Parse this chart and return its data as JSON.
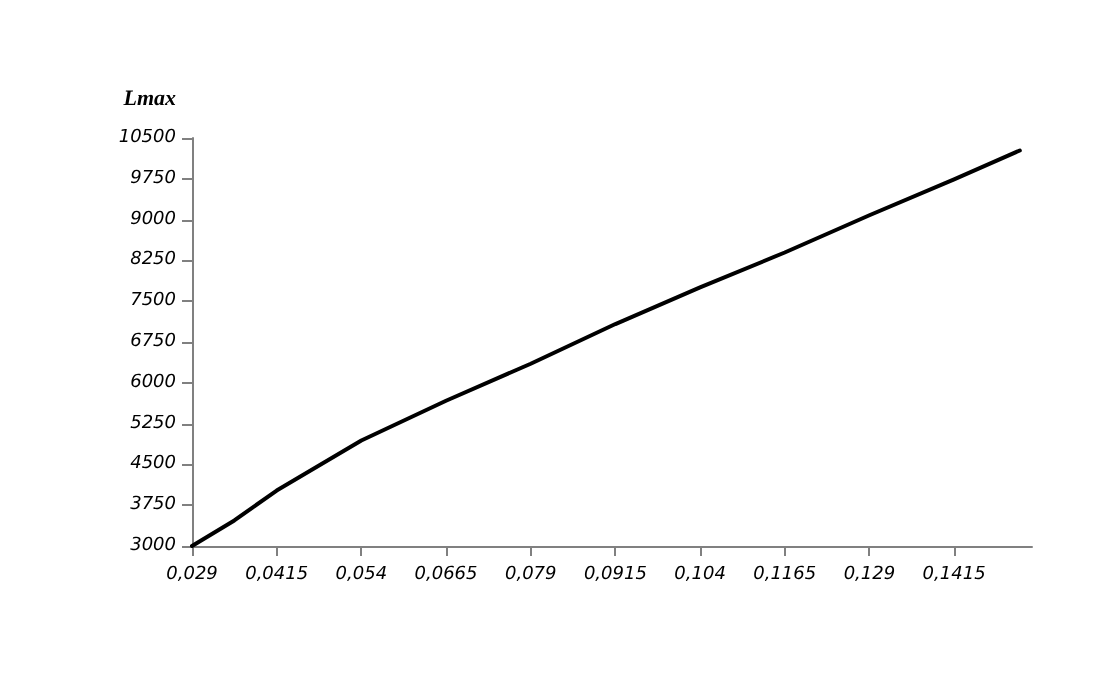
{
  "chart_data": {
    "type": "line",
    "ylabel": "Lmax",
    "x": [
      0.029,
      0.03525,
      0.0415,
      0.054,
      0.0665,
      0.079,
      0.0915,
      0.104,
      0.1165,
      0.129,
      0.1415,
      0.1512
    ],
    "series": [
      {
        "color": "#000000",
        "values": [
          3000,
          3470,
          4020,
          4940,
          5670,
          6350,
          7080,
          7755,
          8395,
          9080,
          9740,
          10270
        ]
      }
    ],
    "xlim": [
      0.029,
      0.153
    ],
    "xticks": [
      {
        "value": 0.029,
        "label": "0,029"
      },
      {
        "value": 0.0415,
        "label": "0,0415"
      },
      {
        "value": 0.054,
        "label": "0,054"
      },
      {
        "value": 0.0665,
        "label": "0,0665"
      },
      {
        "value": 0.079,
        "label": "0,079"
      },
      {
        "value": 0.0915,
        "label": "0,0915"
      },
      {
        "value": 0.104,
        "label": "0,104"
      },
      {
        "value": 0.1165,
        "label": "0,1165"
      },
      {
        "value": 0.129,
        "label": "0,129"
      },
      {
        "value": 0.1415,
        "label": "0,1415"
      }
    ],
    "ylim": [
      3000,
      10500
    ],
    "yticks": [
      3000,
      3750,
      4500,
      5250,
      6000,
      6750,
      7500,
      8250,
      9000,
      9750,
      10500
    ],
    "grid": false,
    "marker": "none",
    "line_style": "solid"
  }
}
